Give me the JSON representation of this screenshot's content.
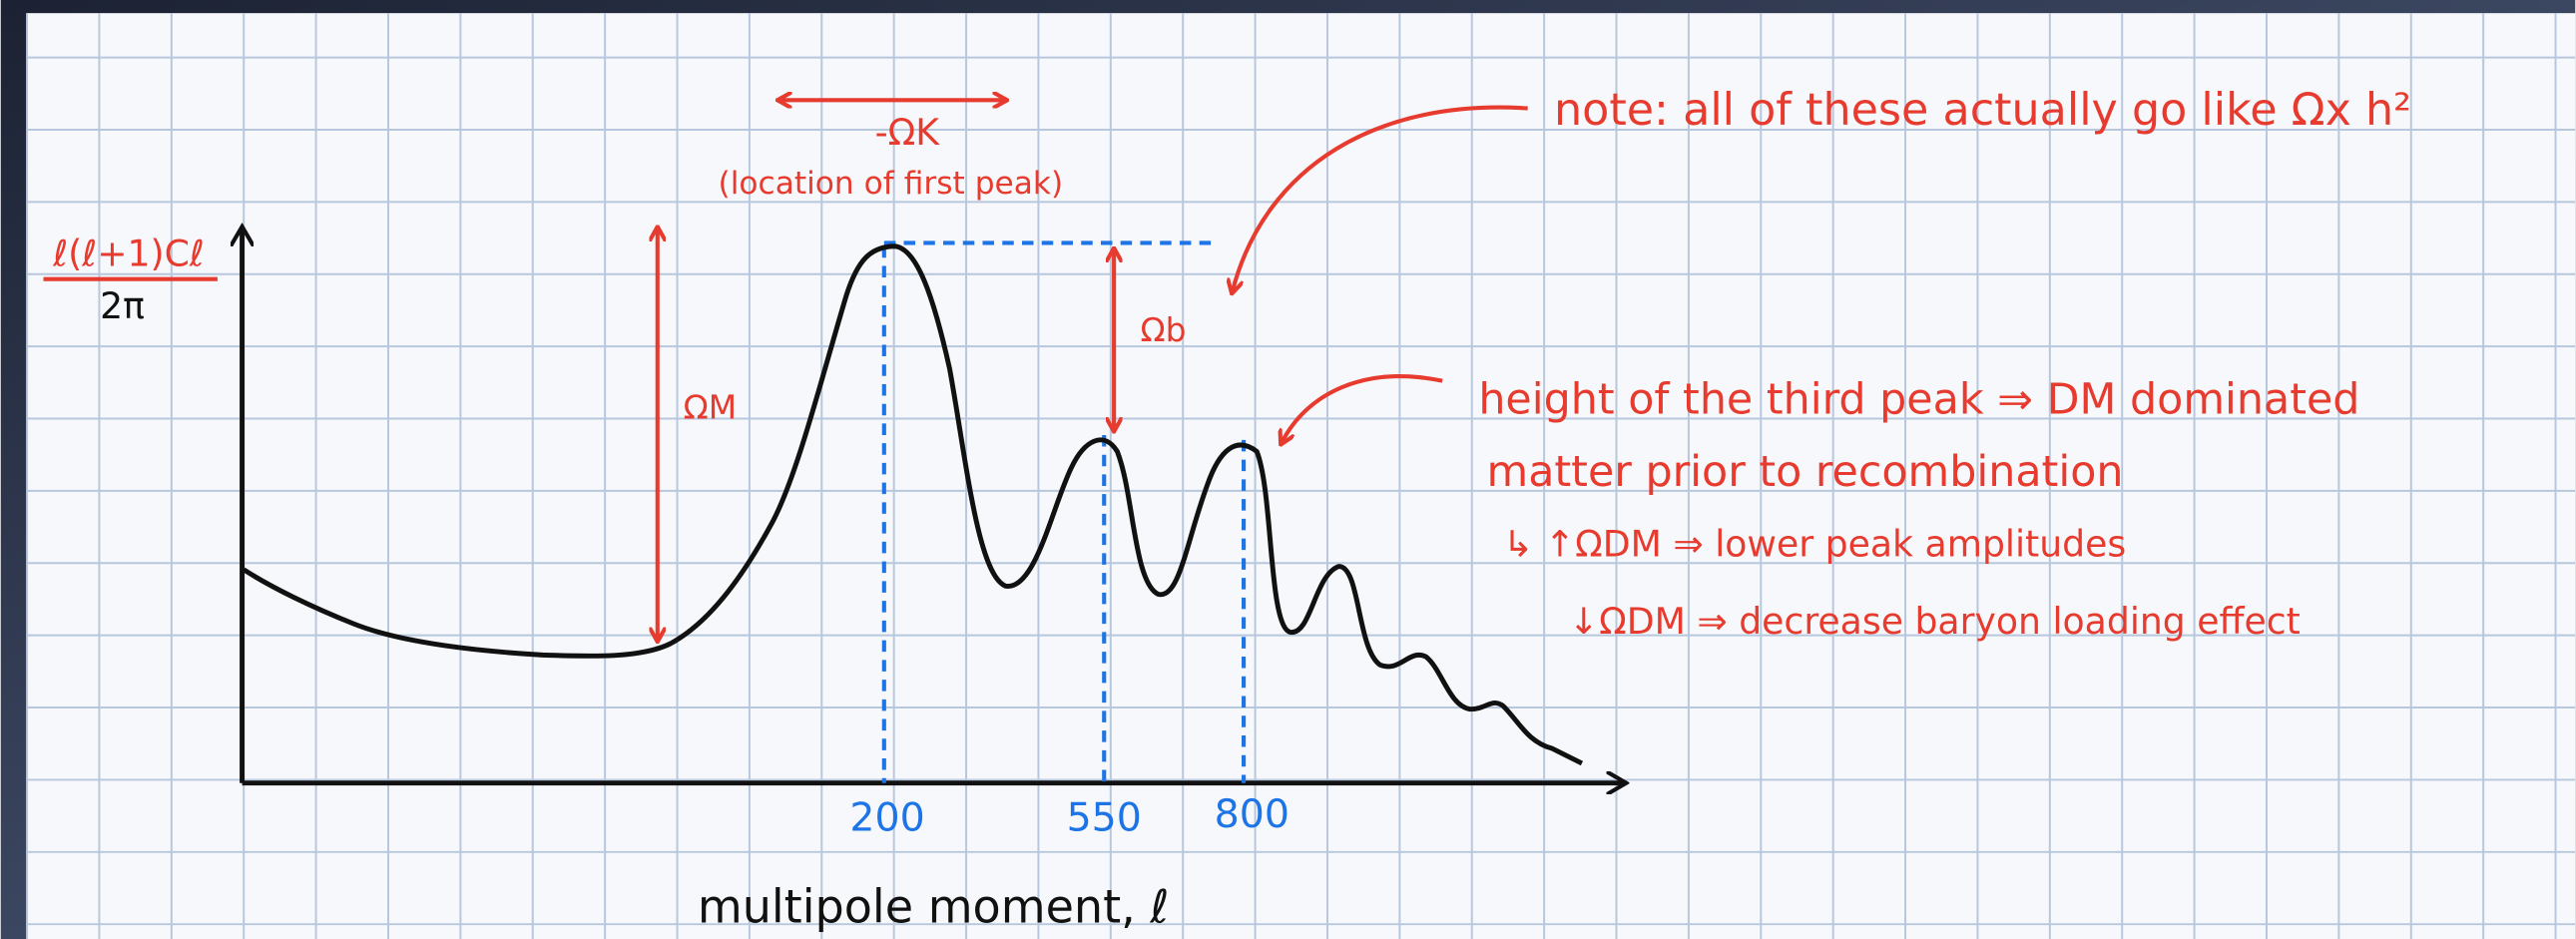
{
  "y_axis_label": {
    "numerator": "ℓ(ℓ+1)Cℓ",
    "denominator": "2π"
  },
  "x_axis_label": "multipole moment, ℓ",
  "x_markers": [
    "200",
    "550",
    "800"
  ],
  "annotations": {
    "omega_k": "-ΩK",
    "omega_k_note": "(location of first peak)",
    "omega_m": "ΩM",
    "omega_b": "Ωb",
    "note": "note: all of these actually go like Ωx h²",
    "third_peak": [
      "height of the third peak ⇒ DM dominated",
      "matter prior to recombination",
      "↳ ↑ΩDM ⇒ lower peak amplitudes",
      "↓ΩDM ⇒ decrease baryon loading effect"
    ]
  }
}
